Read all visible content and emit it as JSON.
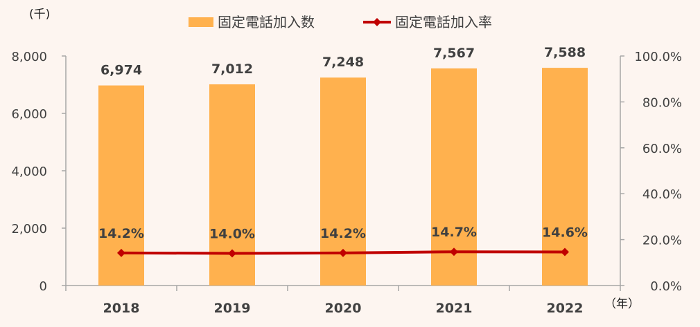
{
  "chart_data": {
    "type": "bar",
    "categories": [
      "2018",
      "2019",
      "2020",
      "2021",
      "2022"
    ],
    "series": [
      {
        "name": "固定電話加入数",
        "kind": "bar",
        "axis": "left",
        "values": [
          6974,
          7012,
          7248,
          7567,
          7588
        ],
        "labels": [
          "6,974",
          "7,012",
          "7,248",
          "7,567",
          "7,588"
        ],
        "color": "#ffb14e"
      },
      {
        "name": "固定電話加入率",
        "kind": "line",
        "axis": "right",
        "values": [
          14.2,
          14.0,
          14.2,
          14.7,
          14.6
        ],
        "labels": [
          "14.2%",
          "14.0%",
          "14.2%",
          "14.7%",
          "14.6%"
        ],
        "color": "#c00000"
      }
    ],
    "y_left": {
      "unit": "(千)",
      "range": [
        0,
        8000
      ],
      "ticks": [
        "0",
        "2,000",
        "4,000",
        "6,000",
        "8,000"
      ]
    },
    "y_right": {
      "range": [
        0,
        100
      ],
      "ticks": [
        "0.0%",
        "20.0%",
        "40.0%",
        "60.0%",
        "80.0%",
        "100.0%"
      ]
    },
    "x_unit": "（年）",
    "legend_position": "top",
    "grid": false
  }
}
